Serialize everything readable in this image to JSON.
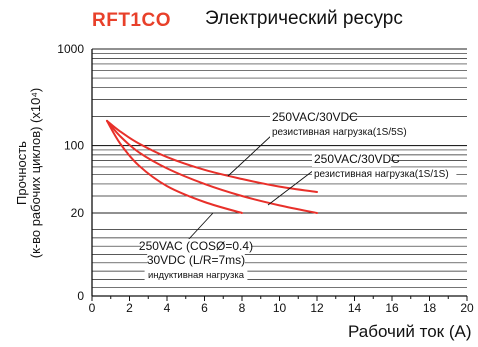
{
  "header": {
    "model": "RFT1CO",
    "title": "Электрический ресурс"
  },
  "colors": {
    "brand": "#e8402a",
    "curve": "#e8302a",
    "grid": "#222222"
  },
  "chart_data": {
    "type": "line",
    "title": "Электрический ресурс",
    "xlabel": "Рабочий ток (A)",
    "ylabel": [
      "Прочность",
      "(к-во рабочих циклов) (x10⁴)"
    ],
    "xlim": [
      0,
      20
    ],
    "ylim": [
      0,
      1000
    ],
    "y_scale": "log",
    "x_ticks": [
      "0",
      "2",
      "4",
      "6",
      "8",
      "10",
      "12",
      "14",
      "16",
      "18",
      "20"
    ],
    "y_ticks": [
      "0",
      "20",
      "100",
      "1000"
    ],
    "grid": true,
    "series": [
      {
        "points": [
          [
            0.8,
            180
          ],
          [
            1.5,
            140
          ],
          [
            2.5,
            105
          ],
          [
            4,
            76
          ],
          [
            6,
            56
          ],
          [
            8,
            45
          ],
          [
            10,
            37.5
          ],
          [
            12,
            33
          ]
        ],
        "label": [
          "250VAC/30VDC",
          "резистивная нагрузка(1S/5S)"
        ]
      },
      {
        "points": [
          [
            0.8,
            180
          ],
          [
            1.5,
            125
          ],
          [
            2.5,
            85
          ],
          [
            4,
            58
          ],
          [
            6,
            40
          ],
          [
            8,
            30
          ],
          [
            10,
            24
          ],
          [
            12,
            20
          ]
        ],
        "label": [
          "250VAC/30VDC",
          "резистивная нагрузка(1S/1S)"
        ]
      },
      {
        "points": [
          [
            0.8,
            180
          ],
          [
            1.5,
            105
          ],
          [
            2.5,
            62
          ],
          [
            4,
            38
          ],
          [
            6,
            26
          ],
          [
            8,
            20
          ]
        ],
        "label": [
          "250VAC (COSØ=0.4)",
          "30VDC (L/R=7ms)",
          "индуктивная нагрузка"
        ]
      }
    ]
  }
}
